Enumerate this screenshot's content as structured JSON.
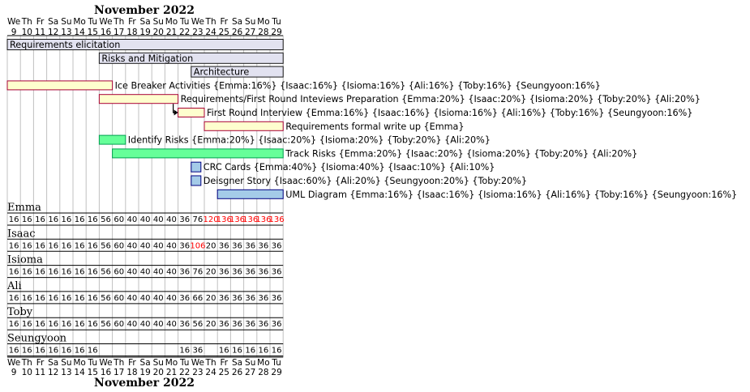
{
  "chart_data": {
    "type": "gantt",
    "month_label": "November 2022",
    "days": [
      {
        "dow": "We",
        "dom": "9"
      },
      {
        "dow": "Th",
        "dom": "10"
      },
      {
        "dow": "Fr",
        "dom": "11"
      },
      {
        "dow": "Sa",
        "dom": "12"
      },
      {
        "dow": "Su",
        "dom": "13"
      },
      {
        "dow": "Mo",
        "dom": "14"
      },
      {
        "dow": "Tu",
        "dom": "15"
      },
      {
        "dow": "We",
        "dom": "16"
      },
      {
        "dow": "Th",
        "dom": "17"
      },
      {
        "dow": "Fr",
        "dom": "18"
      },
      {
        "dow": "Sa",
        "dom": "19"
      },
      {
        "dow": "Su",
        "dom": "20"
      },
      {
        "dow": "Mo",
        "dom": "21"
      },
      {
        "dow": "Tu",
        "dom": "22"
      },
      {
        "dow": "We",
        "dom": "23"
      },
      {
        "dow": "Th",
        "dom": "24"
      },
      {
        "dow": "Fr",
        "dom": "25"
      },
      {
        "dow": "Sa",
        "dom": "26"
      },
      {
        "dow": "Su",
        "dom": "27"
      },
      {
        "dow": "Mo",
        "dom": "28"
      },
      {
        "dow": "Tu",
        "dom": "29"
      }
    ],
    "tasks": [
      {
        "label": "Requirements elicitation",
        "start": 0,
        "end": 21,
        "kind": "group",
        "label_inside": true
      },
      {
        "label": "Risks and Mitigation",
        "start": 7,
        "end": 21,
        "kind": "group",
        "label_inside": true
      },
      {
        "label": "Architecture",
        "start": 14,
        "end": 21,
        "kind": "group",
        "label_inside": true
      },
      {
        "label": "Ice Breaker Activities {Emma:16%} {Isaac:16%} {Isioma:16%} {Ali:16%} {Toby:16%} {Seungyoon:16%}",
        "start": 0,
        "end": 8,
        "kind": "req"
      },
      {
        "label": "Requirements/First Round Inteviews Preparation {Emma:20%} {Isaac:20%} {Isioma:20%} {Toby:20%} {Ali:20%}",
        "start": 7,
        "end": 13,
        "kind": "req"
      },
      {
        "label": "First Round Interview {Emma:16%} {Isaac:16%} {Isioma:16%} {Ali:16%} {Toby:16%} {Seungyoon:16%}",
        "start": 13,
        "end": 15,
        "kind": "req"
      },
      {
        "label": "Requirements formal write up {Emma}",
        "start": 15,
        "end": 21,
        "kind": "req"
      },
      {
        "label": "Identify Risks {Emma:20%} {Isaac:20%} {Isioma:20%} {Toby:20%} {Ali:20%}",
        "start": 7,
        "end": 9,
        "kind": "risk"
      },
      {
        "label": "Track Risks {Emma:20%} {Isaac:20%} {Isioma:20%} {Toby:20%} {Ali:20%}",
        "start": 8,
        "end": 21,
        "kind": "risk"
      },
      {
        "label": "CRC Cards {Emma:40%} {Isioma:40%} {Isaac:10%} {Ali:10%}",
        "start": 14,
        "end": 15,
        "kind": "arch"
      },
      {
        "label": "Deisgner Story {Isaac:60%} {Ali:20%} {Seungyoon:20%} {Toby:20%}",
        "start": 14,
        "end": 15,
        "kind": "arch"
      },
      {
        "label": "UML Diagram {Emma:16%} {Isaac:16%} {Isioma:16%} {Ali:16%} {Toby:16%} {Seungyoon:16%}",
        "start": 16,
        "end": 21,
        "kind": "arch"
      }
    ],
    "dependencies": [
      {
        "from": 4,
        "to": 5
      }
    ],
    "resources": [
      {
        "name": "Emma",
        "loads": [
          "16",
          "16",
          "16",
          "16",
          "16",
          "16",
          "16",
          "56",
          "60",
          "40",
          "40",
          "40",
          "40",
          "36",
          "76",
          "120",
          "136",
          "136",
          "136",
          "136",
          "136"
        ]
      },
      {
        "name": "Isaac",
        "loads": [
          "16",
          "16",
          "16",
          "16",
          "16",
          "16",
          "16",
          "56",
          "60",
          "40",
          "40",
          "40",
          "40",
          "36",
          "106",
          "20",
          "36",
          "36",
          "36",
          "36",
          "36"
        ]
      },
      {
        "name": "Isioma",
        "loads": [
          "16",
          "16",
          "16",
          "16",
          "16",
          "16",
          "16",
          "56",
          "60",
          "40",
          "40",
          "40",
          "40",
          "36",
          "76",
          "20",
          "36",
          "36",
          "36",
          "36",
          "36"
        ]
      },
      {
        "name": "Ali",
        "loads": [
          "16",
          "16",
          "16",
          "16",
          "16",
          "16",
          "16",
          "56",
          "60",
          "40",
          "40",
          "40",
          "40",
          "36",
          "66",
          "20",
          "36",
          "36",
          "36",
          "36",
          "36"
        ]
      },
      {
        "name": "Toby",
        "loads": [
          "16",
          "16",
          "16",
          "16",
          "16",
          "16",
          "16",
          "56",
          "60",
          "40",
          "40",
          "40",
          "40",
          "36",
          "56",
          "20",
          "36",
          "36",
          "36",
          "36",
          "36"
        ]
      },
      {
        "name": "Seungyoon",
        "loads": [
          "16",
          "16",
          "16",
          "16",
          "16",
          "16",
          "16",
          "",
          "",
          "",
          "",
          "",
          "",
          "16",
          "36",
          "",
          "16",
          "16",
          "16",
          "16",
          "16"
        ]
      }
    ],
    "overload_threshold": 100,
    "colors": {
      "group_fill": "#e2e2f0",
      "group_stroke": "#181818",
      "req_fill": "#fefece",
      "req_stroke": "#a80036",
      "risk_fill": "#66ff99",
      "risk_stroke": "#00a050",
      "arch_fill": "#a4cbe8",
      "arch_stroke": "#000080",
      "grid": "#c0c0c0",
      "overload_text": "#ff0000"
    }
  }
}
